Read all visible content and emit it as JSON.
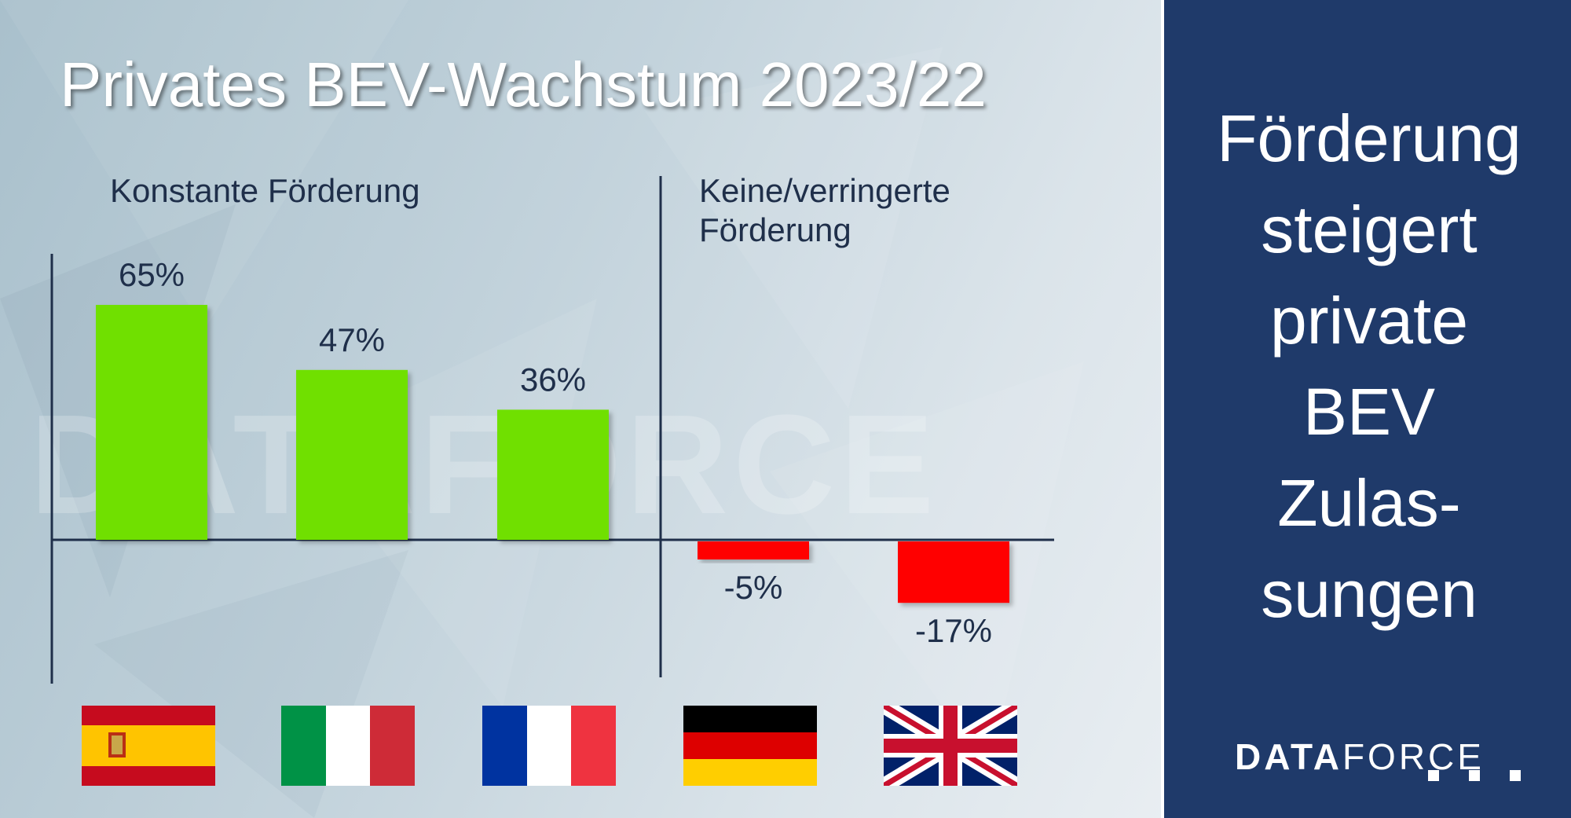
{
  "title": "Privates BEV-Wachstum 2023/22",
  "groups": {
    "left_label": "Konstante Förderung",
    "right_label": "Keine/verringerte Förderung"
  },
  "chart_data": {
    "type": "bar",
    "categories": [
      "Spanien",
      "Italien",
      "Frankreich",
      "Deutschland",
      "Vereinigtes Königreich"
    ],
    "values": [
      65,
      47,
      36,
      -5,
      -17
    ],
    "data_labels": [
      "65%",
      "47%",
      "36%",
      "-5%",
      "-17%"
    ],
    "colors": [
      "#6fe000",
      "#6fe000",
      "#6fe000",
      "#ff0000",
      "#ff0000"
    ],
    "title": "Privates BEV-Wachstum 2023/22",
    "xlabel": "",
    "ylabel": "",
    "ylim": [
      -37,
      80
    ],
    "grid": false,
    "category_icons": [
      "flag-spain-icon",
      "flag-italy-icon",
      "flag-france-icon",
      "flag-germany-icon",
      "flag-uk-icon"
    ]
  },
  "panel": {
    "text": "Förderung\nsteigert\nprivate\nBEV\nZulas-\nsungen",
    "background": "#1f3a6a"
  },
  "brand": {
    "bold": "DATA",
    "regular": "FORCE"
  },
  "watermark": "DATAFORCE",
  "colors": {
    "axis": "#1f2f4a",
    "positive": "#6fe000",
    "negative": "#ff0000"
  }
}
